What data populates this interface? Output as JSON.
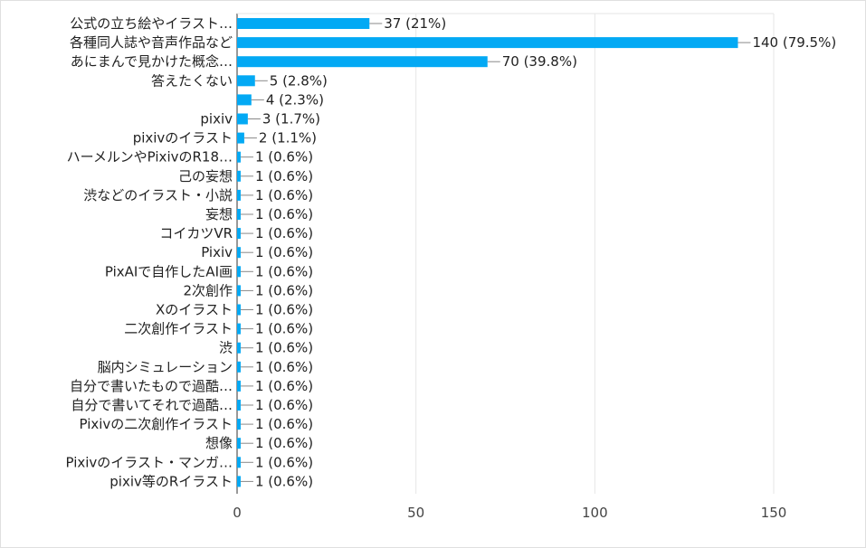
{
  "chart_data": {
    "type": "bar",
    "orientation": "horizontal",
    "title": "",
    "xlabel": "",
    "ylabel": "",
    "xlim": [
      0,
      150
    ],
    "x_ticks": [
      0,
      50,
      100,
      150
    ],
    "grid": true,
    "bar_color": "#03a9f4",
    "categories": [
      "公式の立ち絵やイラスト…",
      "各種同人誌や音声作品など",
      "あにまんで見かけた概念…",
      "答えたくない",
      "",
      "pixiv",
      "pixivのイラスト",
      "ハーメルンやPixivのR18…",
      "己の妄想",
      "渋などのイラスト・小説",
      "妄想",
      "コイカツVR",
      "Pixiv",
      "PixAIで自作したAI画",
      "2次創作",
      "Xのイラスト",
      "二次創作イラスト",
      "渋",
      "脳内シミュレーション",
      "自分で書いたもので過酷…",
      "自分で書いてそれで過酷…",
      "Pixivの二次創作イラスト",
      "想像",
      "Pixivのイラスト・マンガ…",
      "pixiv等のRイラスト"
    ],
    "values": [
      37,
      140,
      70,
      5,
      4,
      3,
      2,
      1,
      1,
      1,
      1,
      1,
      1,
      1,
      1,
      1,
      1,
      1,
      1,
      1,
      1,
      1,
      1,
      1,
      1
    ],
    "value_labels": [
      "37 (21%)",
      "140 (79.5%)",
      "70 (39.8%)",
      "5 (2.8%)",
      "4 (2.3%)",
      "3 (1.7%)",
      "2 (1.1%)",
      "1 (0.6%)",
      "1 (0.6%)",
      "1 (0.6%)",
      "1 (0.6%)",
      "1 (0.6%)",
      "1 (0.6%)",
      "1 (0.6%)",
      "1 (0.6%)",
      "1 (0.6%)",
      "1 (0.6%)",
      "1 (0.6%)",
      "1 (0.6%)",
      "1 (0.6%)",
      "1 (0.6%)",
      "1 (0.6%)",
      "1 (0.6%)",
      "1 (0.6%)",
      "1 (0.6%)"
    ]
  }
}
